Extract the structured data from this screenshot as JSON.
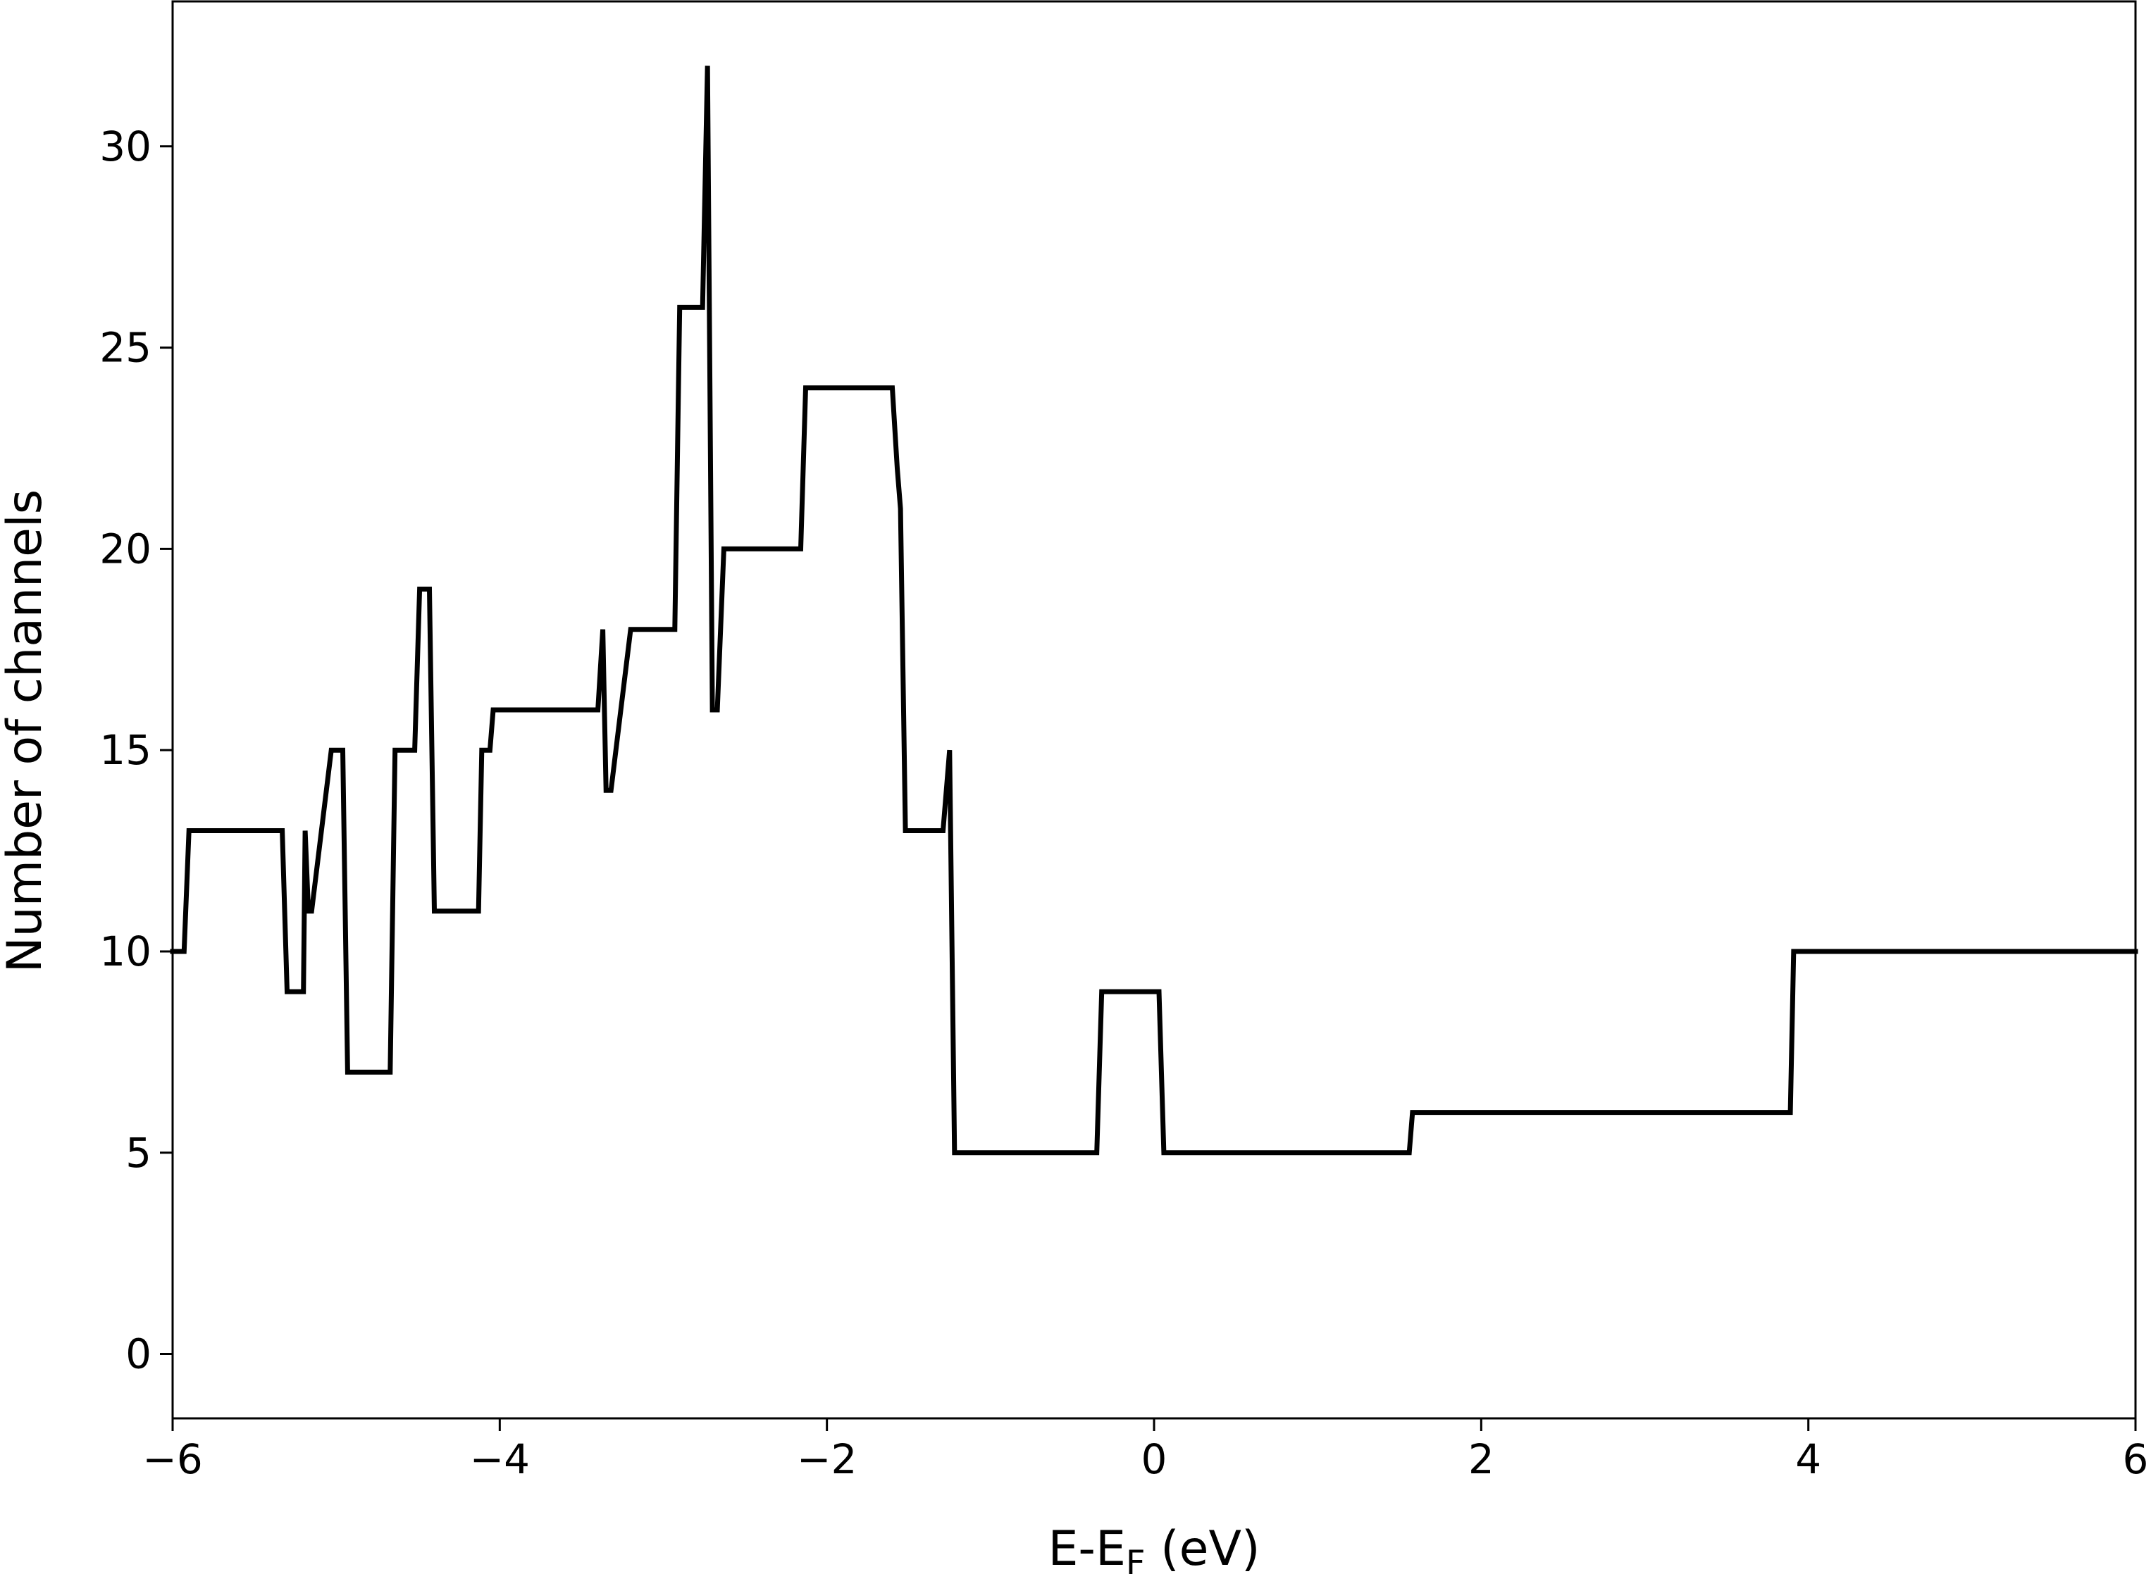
{
  "chart_data": {
    "type": "line",
    "title": "",
    "xlabel": "E-E",
    "xlabel_subscript": "F",
    "xlabel_unit": " (eV)",
    "ylabel": "Number of channels",
    "xlim": [
      -6,
      6
    ],
    "ylim": [
      -1.6,
      33.6
    ],
    "xticks": [
      -6,
      -4,
      -2,
      0,
      2,
      4,
      6
    ],
    "xtick_labels": [
      "−6",
      "−4",
      "−2",
      "0",
      "2",
      "4",
      "6"
    ],
    "yticks": [
      0,
      5,
      10,
      15,
      20,
      25,
      30
    ],
    "ytick_labels": [
      "0",
      "5",
      "10",
      "15",
      "20",
      "25",
      "30"
    ],
    "grid": false,
    "legend": "none",
    "line_color": "#000000",
    "series": [
      {
        "x": [
          -6.0,
          -5.93,
          -5.9,
          -5.33,
          -5.3,
          -5.2,
          -5.19,
          -5.17,
          -5.15,
          -5.03,
          -5.0,
          -4.96,
          -4.93,
          -4.67,
          -4.64,
          -4.52,
          -4.49,
          -4.43,
          -4.4,
          -4.13,
          -4.11,
          -4.06,
          -4.04,
          -3.4,
          -3.37,
          -3.35,
          -3.32,
          -3.2,
          -3.18,
          -2.93,
          -2.9,
          -2.76,
          -2.73,
          -2.7,
          -2.67,
          -2.63,
          -2.6,
          -2.16,
          -2.13,
          -1.6,
          -1.57,
          -1.55,
          -1.52,
          -1.29,
          -1.25,
          -1.22,
          -0.35,
          -0.32,
          0.03,
          0.06,
          1.56,
          1.58,
          3.89,
          3.91,
          6.0
        ],
        "y": [
          10,
          10,
          13,
          13,
          9,
          9,
          13,
          11,
          11,
          15,
          15,
          15,
          7,
          7,
          15,
          15,
          19,
          19,
          11,
          11,
          15,
          15,
          16,
          16,
          18,
          14,
          14,
          18,
          18,
          18,
          26,
          26,
          32,
          16,
          16,
          20,
          20,
          20,
          24,
          24,
          22,
          21,
          13,
          13,
          15,
          5,
          5,
          9,
          9,
          5,
          5,
          6,
          6,
          10,
          10
        ]
      }
    ]
  }
}
